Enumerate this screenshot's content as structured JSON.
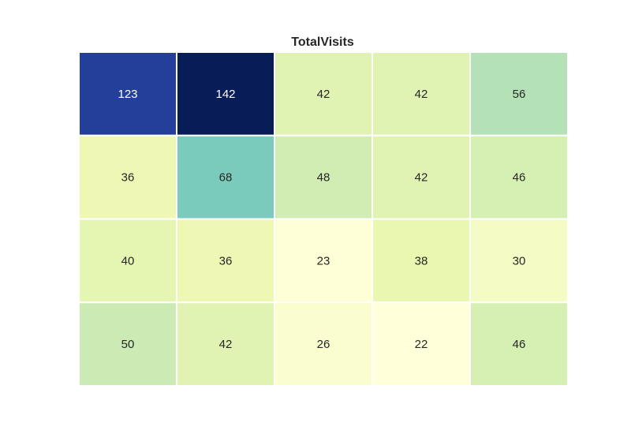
{
  "chart_data": {
    "type": "heatmap",
    "title": "TotalVisits",
    "xlabel": "",
    "ylabel": "",
    "rows": 4,
    "cols": 5,
    "values": [
      [
        123,
        142,
        42,
        42,
        56
      ],
      [
        36,
        68,
        48,
        42,
        46
      ],
      [
        40,
        36,
        23,
        38,
        30
      ],
      [
        50,
        42,
        26,
        22,
        46
      ]
    ],
    "colormap": "YlGnBu",
    "color_range": [
      22,
      142
    ],
    "show_values": true,
    "grid_line_color": "#ffffff"
  }
}
